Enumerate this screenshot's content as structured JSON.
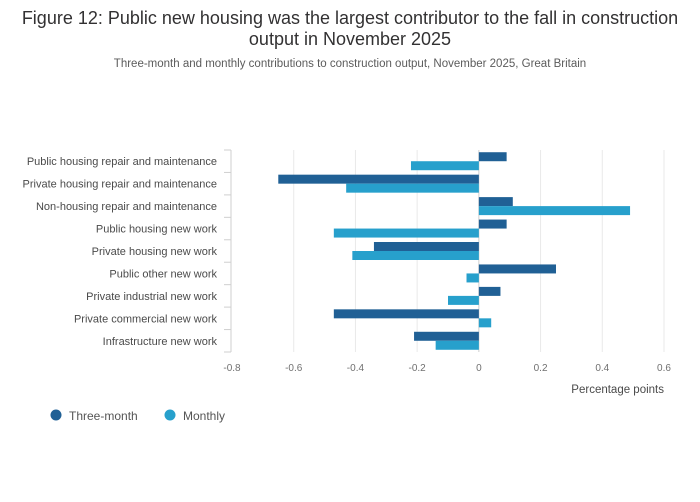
{
  "title": "Figure 12: Public new housing was the largest contributor to the fall in construction output in November 2025",
  "subtitle": "Three-month and monthly contributions to construction output, November 2025, Great Britain",
  "chart_data": {
    "type": "bar",
    "orientation": "horizontal",
    "categories": [
      "Public housing repair and maintenance",
      "Private housing repair and maintenance",
      "Non-housing repair and maintenance",
      "Public housing new work",
      "Private housing new work",
      "Public other new work",
      "Private industrial new work",
      "Private commercial new work",
      "Infrastructure new work"
    ],
    "series": [
      {
        "name": "Three-month",
        "color": "#206095",
        "values": [
          0.09,
          -0.65,
          0.11,
          0.09,
          -0.34,
          0.25,
          0.07,
          -0.47,
          -0.21
        ]
      },
      {
        "name": "Monthly",
        "color": "#27a0cc",
        "values": [
          -0.22,
          -0.43,
          0.49,
          -0.47,
          -0.41,
          -0.04,
          -0.1,
          0.04,
          -0.14
        ]
      }
    ],
    "xlabel": "Percentage points",
    "xlim": [
      -0.8,
      0.6
    ],
    "xticks": [
      -0.8,
      -0.6,
      -0.4,
      -0.2,
      0,
      0.2,
      0.4,
      0.6
    ],
    "xtick_labels": [
      "-0.8",
      "-0.6",
      "-0.4",
      "-0.2",
      "0",
      "0.2",
      "0.4",
      "0.6"
    ],
    "grid": true,
    "legend_position": "bottom-left"
  }
}
